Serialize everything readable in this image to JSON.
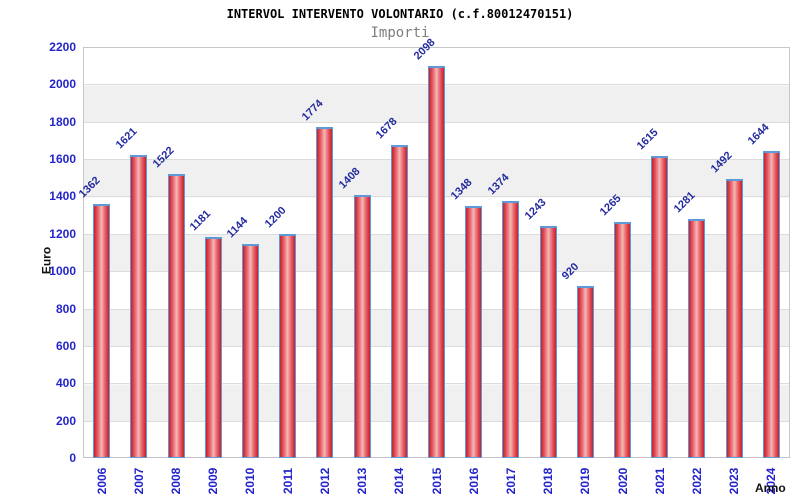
{
  "chart_data": {
    "type": "bar",
    "title": "INTERVOL INTERVENTO VOLONTARIO (c.f.80012470151)",
    "subtitle": "Importi",
    "xlabel": "Anno",
    "ylabel": "Euro",
    "categories": [
      "2006",
      "2007",
      "2008",
      "2009",
      "2010",
      "2011",
      "2012",
      "2013",
      "2014",
      "2015",
      "2016",
      "2017",
      "2018",
      "2019",
      "2020",
      "2021",
      "2022",
      "2023",
      "2024"
    ],
    "values": [
      1362,
      1621,
      1522,
      1181,
      1144,
      1200,
      1774,
      1408,
      1678,
      2098,
      1348,
      1374,
      1243,
      920,
      1265,
      1615,
      1281,
      1492,
      1644
    ],
    "ylim": [
      0,
      2200
    ],
    "ytick_step": 200,
    "grid": true,
    "legend_position": "none",
    "colors": {
      "bar_edge": "#c32231",
      "bar_center": "#f6b9b9",
      "bar_border": "#5c9ad8",
      "tick_label": "#2424cc",
      "value_label": "#232a9e",
      "band_gray": "#f0f0f0",
      "band_white": "#ffffff",
      "plot_border": "#c6c6c6",
      "title": "#000000",
      "subtitle": "#7e7e7e"
    }
  }
}
